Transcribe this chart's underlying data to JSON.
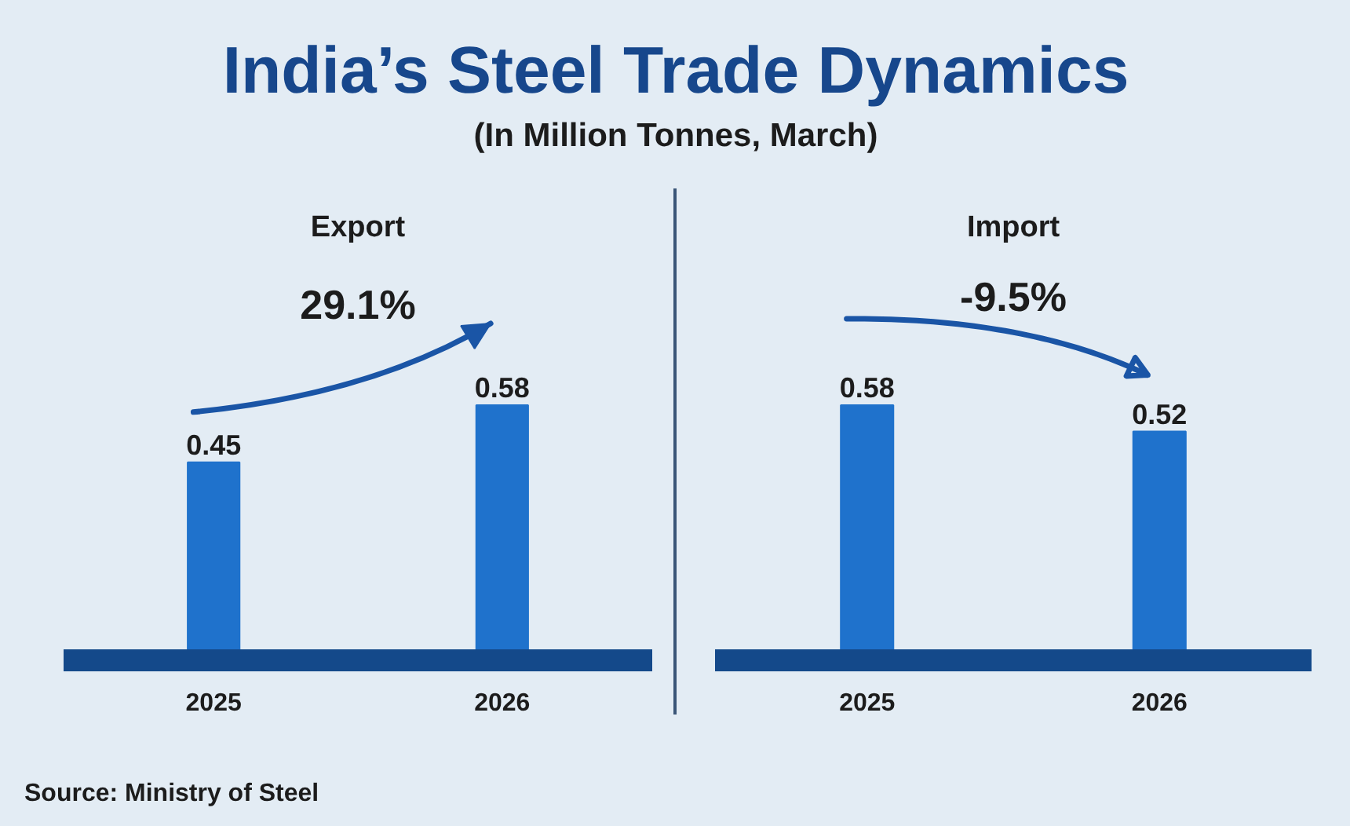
{
  "chart_data": [
    {
      "type": "other",
      "title": "India’s Steel Trade Dynamics",
      "subtitle": "(In Million Tonnes, March)",
      "annotations": [
        "Source: Ministry of Steel"
      ]
    },
    {
      "type": "bar",
      "title": "Export",
      "categories": [
        "2025",
        "2026"
      ],
      "values": [
        0.45,
        0.58
      ],
      "color": "#1f72cc",
      "data_labels": true,
      "tick_labels": "x",
      "annotations": [
        "29.1%"
      ]
    },
    {
      "type": "bar",
      "title": "Import",
      "categories": [
        "2025",
        "2026"
      ],
      "values": [
        0.58,
        0.52
      ],
      "color": "#1f72cc",
      "data_labels": true,
      "tick_labels": "x",
      "annotations": [
        "-9.5%"
      ]
    }
  ]
}
